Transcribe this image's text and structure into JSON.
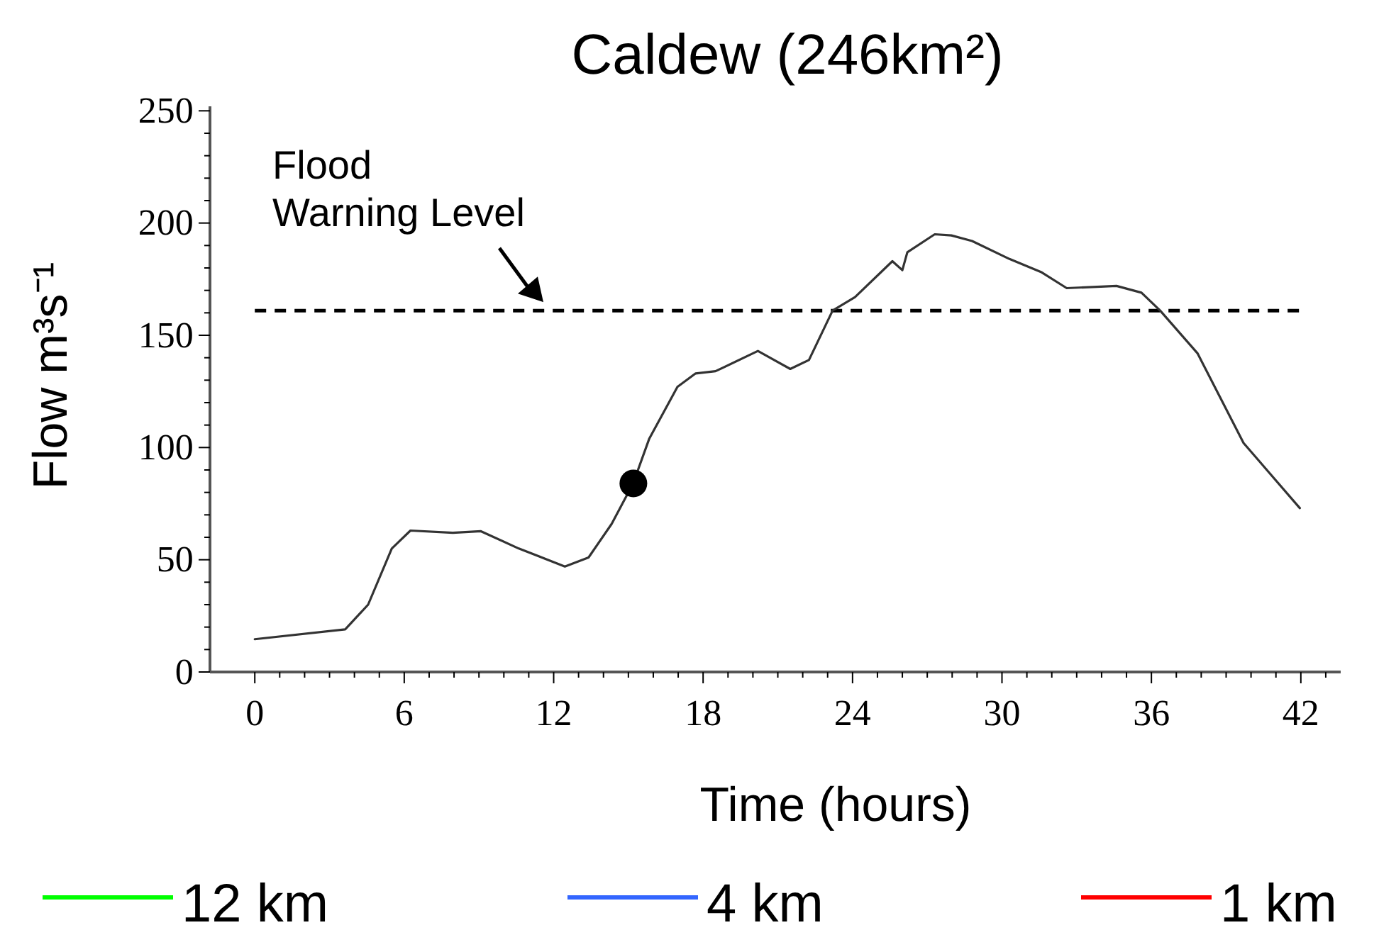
{
  "chart_data": {
    "type": "line",
    "title": "Caldew (246km²)",
    "xlabel": "Time (hours)",
    "ylabel": "Flow m³s⁻¹",
    "xlim": [
      -1.8,
      43.6
    ],
    "ylim": [
      0,
      252
    ],
    "xticks": [
      0,
      {
        "value": 1,
        "label": null
      },
      {
        "value": 2,
        "label": null
      },
      {
        "value": 3,
        "label": null
      },
      {
        "value": 4,
        "label": null
      },
      {
        "value": 5,
        "label": null
      },
      6,
      {
        "value": 7,
        "label": null
      },
      {
        "value": 8,
        "label": null
      },
      {
        "value": 9,
        "label": null
      },
      {
        "value": 10,
        "label": null
      },
      {
        "value": 11,
        "label": null
      },
      12,
      {
        "value": 13,
        "label": null
      },
      {
        "value": 14,
        "label": null
      },
      {
        "value": 15,
        "label": null
      },
      {
        "value": 16,
        "label": null
      },
      {
        "value": 17,
        "label": null
      },
      18,
      {
        "value": 19,
        "label": null
      },
      {
        "value": 20,
        "label": null
      },
      {
        "value": 21,
        "label": null
      },
      {
        "value": 22,
        "label": null
      },
      {
        "value": 23,
        "label": null
      },
      24,
      {
        "value": 25,
        "label": null
      },
      {
        "value": 26,
        "label": null
      },
      {
        "value": 27,
        "label": null
      },
      {
        "value": 28,
        "label": null
      },
      {
        "value": 29,
        "label": null
      },
      30,
      {
        "value": 31,
        "label": null
      },
      {
        "value": 32,
        "label": null
      },
      {
        "value": 33,
        "label": null
      },
      {
        "value": 34,
        "label": null
      },
      {
        "value": 35,
        "label": null
      },
      36,
      {
        "value": 37,
        "label": null
      },
      {
        "value": 38,
        "label": null
      },
      {
        "value": 39,
        "label": null
      },
      {
        "value": 40,
        "label": null
      },
      {
        "value": 41,
        "label": null
      },
      42,
      {
        "value": 43,
        "label": null
      }
    ],
    "yticks": [
      0,
      {
        "value": 10,
        "label": null
      },
      {
        "value": 20,
        "label": null
      },
      {
        "value": 30,
        "label": null
      },
      {
        "value": 40,
        "label": null
      },
      50,
      {
        "value": 60,
        "label": null
      },
      {
        "value": 70,
        "label": null
      },
      {
        "value": 80,
        "label": null
      },
      {
        "value": 90,
        "label": null
      },
      100,
      {
        "value": 110,
        "label": null
      },
      {
        "value": 120,
        "label": null
      },
      {
        "value": 130,
        "label": null
      },
      {
        "value": 140,
        "label": null
      },
      150,
      {
        "value": 160,
        "label": null
      },
      {
        "value": 170,
        "label": null
      },
      {
        "value": 180,
        "label": null
      },
      {
        "value": 190,
        "label": null
      },
      200,
      {
        "value": 210,
        "label": null
      },
      {
        "value": 220,
        "label": null
      },
      {
        "value": 230,
        "label": null
      },
      {
        "value": 240,
        "label": null
      },
      250
    ],
    "legend": "bottom",
    "grid": false,
    "ref_lines": [
      {
        "axis": "y",
        "value": 161,
        "label": "Flood Warning Level",
        "color": "#000000",
        "line_style": "dashed"
      }
    ],
    "series": [
      {
        "color": "#333333",
        "x": [
          0,
          3.63,
          4.55,
          5.5,
          6.25,
          7.95,
          9.08,
          10.6,
          12.45,
          13.4,
          14.33,
          15.19,
          15.84,
          16.97,
          17.7,
          18.5,
          20.2,
          21.5,
          22.25,
          23.2,
          24.1,
          25.6,
          26.0,
          26.2,
          27.3,
          27.97,
          28.8,
          30.3,
          31.6,
          32.6,
          34.6,
          35.6,
          36.35,
          37.85,
          39.7,
          41.96
        ],
        "values": [
          14.6,
          19,
          30,
          55,
          63,
          62,
          62.7,
          55,
          47,
          51,
          66,
          84,
          104,
          127,
          133,
          134,
          143,
          135,
          139,
          161,
          167,
          183,
          179,
          187,
          195,
          194.5,
          192,
          184,
          178,
          171,
          172,
          169,
          161,
          142,
          102,
          73
        ]
      },
      {
        "type": "scatter",
        "color": "#000000",
        "marker": "circle",
        "x": [
          15.2
        ],
        "values": [
          84
        ]
      },
      {
        "name": "12 km",
        "color": "#00ff00"
      },
      {
        "name": "4 km",
        "color": "#3366ff"
      },
      {
        "name": "1 km",
        "color": "#ff0000"
      }
    ]
  }
}
